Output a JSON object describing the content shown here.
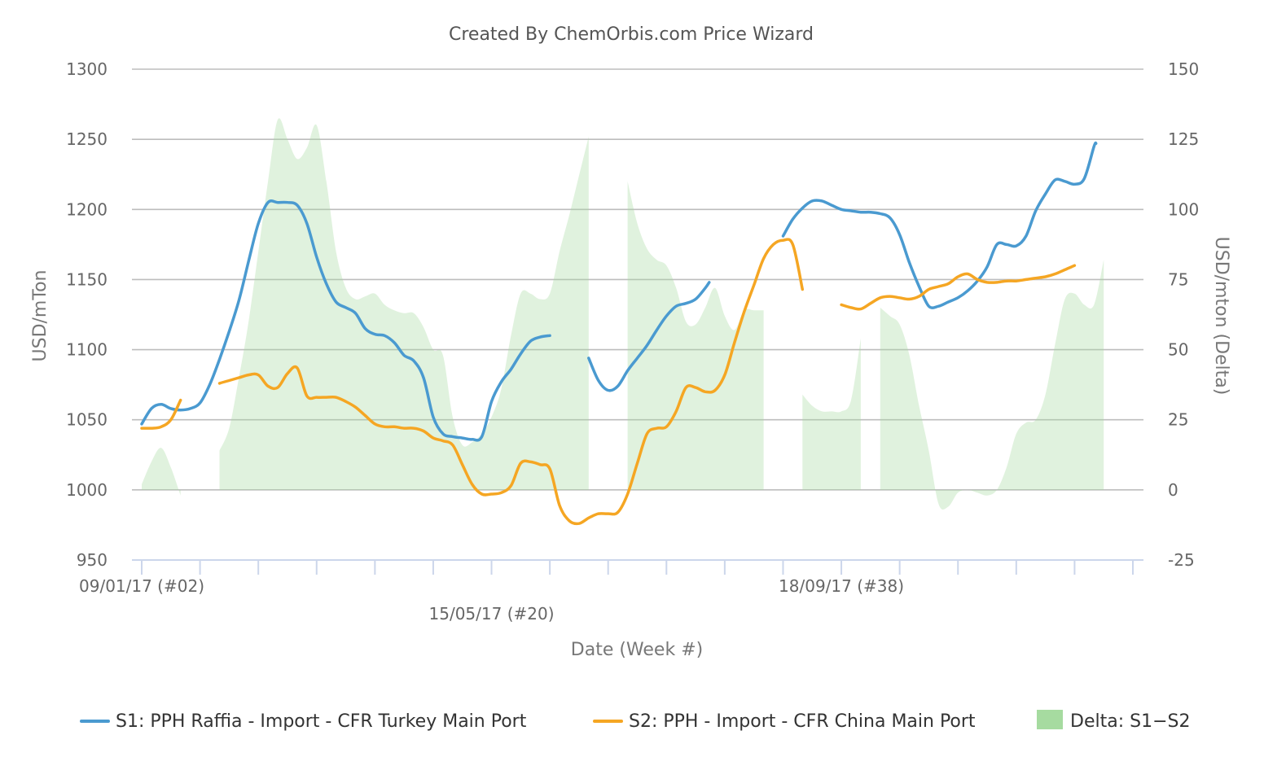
{
  "chart_data": {
    "type": "line",
    "title": "Created By ChemOrbis.com Price Wizard",
    "xlabel": "Date (Week #)",
    "ylabel": "USD/mTon",
    "y2label": "USD/mton (Delta)",
    "ylim": [
      950,
      1300
    ],
    "y2lim": [
      -25,
      150
    ],
    "yticks": [
      "950",
      "1000",
      "1050",
      "1100",
      "1150",
      "1200",
      "1250",
      "1300"
    ],
    "y2ticks": [
      "-25",
      "0",
      "25",
      "50",
      "75",
      "100",
      "125",
      "150"
    ],
    "xtick_labels": [
      {
        "week": 2,
        "label": "09/01/17 (#02)",
        "row": 1
      },
      {
        "week": 20,
        "label": "15/05/17 (#20)",
        "row": 2
      },
      {
        "week": 38,
        "label": "18/09/17 (#38)",
        "row": 1
      }
    ],
    "xtick_weeks": [
      2,
      5,
      8,
      11,
      14,
      17,
      20,
      23,
      26,
      29,
      32,
      35,
      38,
      41,
      44,
      47,
      50,
      53
    ],
    "x_domain": [
      2,
      53
    ],
    "grid": true,
    "legend_position": "bottom",
    "series": [
      {
        "name": "S1: PPH Raffia - Import - CFR Turkey Main Port",
        "axis": "left",
        "color": "#4a9ad0",
        "points": [
          [
            2,
            1047
          ],
          [
            2.5,
            1058
          ],
          [
            3,
            1061
          ],
          [
            3.5,
            1058
          ],
          [
            4,
            1057
          ],
          [
            4.5,
            1058
          ],
          [
            5,
            1062
          ],
          [
            5.5,
            1075
          ],
          [
            6,
            1093
          ],
          [
            6.5,
            1113
          ],
          [
            7,
            1135
          ],
          [
            7.5,
            1163
          ],
          [
            8,
            1190
          ],
          [
            8.5,
            1205
          ],
          [
            9,
            1205
          ],
          [
            9.5,
            1205
          ],
          [
            10,
            1203
          ],
          [
            10.5,
            1190
          ],
          [
            11,
            1166
          ],
          [
            11.5,
            1147
          ],
          [
            12,
            1134
          ],
          [
            12.5,
            1130
          ],
          [
            13,
            1126
          ],
          [
            13.5,
            1115
          ],
          [
            14,
            1111
          ],
          [
            14.5,
            1110
          ],
          [
            15,
            1105
          ],
          [
            15.5,
            1096
          ],
          [
            16,
            1092
          ],
          [
            16.5,
            1080
          ],
          [
            17,
            1052
          ],
          [
            17.5,
            1040
          ],
          [
            18,
            1038
          ],
          [
            18.5,
            1037
          ],
          [
            19,
            1036
          ],
          [
            19.5,
            1038
          ],
          [
            20,
            1063
          ],
          [
            20.5,
            1077
          ],
          [
            21,
            1086
          ],
          [
            21.5,
            1097
          ],
          [
            22,
            1106
          ],
          [
            22.5,
            1109
          ],
          [
            23,
            1110
          ],
          null,
          [
            25,
            1094
          ],
          [
            25.5,
            1078
          ],
          [
            26,
            1071
          ],
          [
            26.5,
            1074
          ],
          [
            27,
            1085
          ],
          [
            27.5,
            1094
          ],
          [
            28,
            1103
          ],
          [
            28.5,
            1114
          ],
          [
            29,
            1124
          ],
          [
            29.5,
            1131
          ],
          [
            30,
            1133
          ],
          [
            30.5,
            1136
          ],
          [
            31,
            1144
          ],
          [
            31.2,
            1148
          ],
          null,
          [
            35,
            1181
          ],
          [
            35.5,
            1193
          ],
          [
            36,
            1201
          ],
          [
            36.5,
            1206
          ],
          [
            37,
            1206
          ],
          [
            37.5,
            1203
          ],
          [
            38,
            1200
          ],
          [
            38.5,
            1199
          ],
          [
            39,
            1198
          ],
          [
            39.5,
            1198
          ],
          [
            40,
            1197
          ],
          [
            40.5,
            1194
          ],
          [
            41,
            1182
          ],
          [
            41.5,
            1162
          ],
          [
            42,
            1145
          ],
          [
            42.5,
            1131
          ],
          [
            43,
            1131
          ],
          [
            43.5,
            1134
          ],
          [
            44,
            1137
          ],
          [
            44.5,
            1142
          ],
          [
            45,
            1149
          ],
          [
            45.5,
            1159
          ],
          [
            46,
            1175
          ],
          [
            46.5,
            1175
          ],
          [
            47,
            1174
          ],
          [
            47.5,
            1181
          ],
          [
            48,
            1199
          ],
          [
            48.5,
            1211
          ],
          [
            49,
            1221
          ],
          [
            49.5,
            1220
          ],
          [
            50,
            1218
          ],
          [
            50.5,
            1222
          ],
          [
            51,
            1245
          ],
          [
            51.1,
            1247
          ]
        ]
      },
      {
        "name": "S2: PPH - Import - CFR China Main Port",
        "axis": "left",
        "color": "#f5a623",
        "points": [
          [
            2,
            1044
          ],
          [
            2.5,
            1044
          ],
          [
            3,
            1045
          ],
          [
            3.5,
            1050
          ],
          [
            4,
            1064
          ],
          null,
          [
            6,
            1076
          ],
          [
            6.5,
            1078
          ],
          [
            7,
            1080
          ],
          [
            7.5,
            1082
          ],
          [
            8,
            1082
          ],
          [
            8.5,
            1074
          ],
          [
            9,
            1073
          ],
          [
            9.5,
            1083
          ],
          [
            10,
            1087
          ],
          [
            10.5,
            1067
          ],
          [
            11,
            1066
          ],
          [
            11.5,
            1066
          ],
          [
            12,
            1066
          ],
          [
            12.5,
            1063
          ],
          [
            13,
            1059
          ],
          [
            13.5,
            1053
          ],
          [
            14,
            1047
          ],
          [
            14.5,
            1045
          ],
          [
            15,
            1045
          ],
          [
            15.5,
            1044
          ],
          [
            16,
            1044
          ],
          [
            16.5,
            1042
          ],
          [
            17,
            1037
          ],
          [
            17.5,
            1035
          ],
          [
            18,
            1032
          ],
          [
            18.5,
            1018
          ],
          [
            19,
            1004
          ],
          [
            19.5,
            997
          ],
          [
            20,
            997
          ],
          [
            20.5,
            998
          ],
          [
            21,
            1003
          ],
          [
            21.5,
            1019
          ],
          [
            22,
            1020
          ],
          [
            22.5,
            1018
          ],
          [
            23,
            1015
          ],
          [
            23.5,
            989
          ],
          [
            24,
            978
          ],
          [
            24.5,
            976
          ],
          [
            25,
            980
          ],
          [
            25.5,
            983
          ],
          [
            26,
            983
          ],
          [
            26.5,
            984
          ],
          [
            27,
            997
          ],
          [
            27.5,
            1019
          ],
          [
            28,
            1040
          ],
          [
            28.5,
            1044
          ],
          [
            29,
            1045
          ],
          [
            29.5,
            1056
          ],
          [
            30,
            1073
          ],
          [
            30.5,
            1073
          ],
          [
            31,
            1070
          ],
          [
            31.5,
            1071
          ],
          [
            32,
            1082
          ],
          [
            32.5,
            1105
          ],
          [
            33,
            1127
          ],
          [
            33.5,
            1146
          ],
          [
            34,
            1165
          ],
          [
            34.5,
            1175
          ],
          [
            35,
            1178
          ],
          [
            35.5,
            1175
          ],
          [
            36,
            1143
          ],
          null,
          [
            38,
            1132
          ],
          [
            38.5,
            1130
          ],
          [
            39,
            1129
          ],
          [
            39.5,
            1133
          ],
          [
            40,
            1137
          ],
          [
            40.5,
            1138
          ],
          [
            41,
            1137
          ],
          [
            41.5,
            1136
          ],
          [
            42,
            1138
          ],
          [
            42.5,
            1143
          ],
          [
            43,
            1145
          ],
          [
            43.5,
            1147
          ],
          [
            44,
            1152
          ],
          [
            44.5,
            1154
          ],
          [
            45,
            1150
          ],
          [
            45.5,
            1148
          ],
          [
            46,
            1148
          ],
          [
            46.5,
            1149
          ],
          [
            47,
            1149
          ],
          [
            47.5,
            1150
          ],
          [
            48,
            1151
          ],
          [
            48.5,
            1152
          ],
          [
            49,
            1154
          ],
          [
            49.5,
            1157
          ],
          [
            50,
            1160
          ]
        ]
      },
      {
        "name": "Delta: S1−S2",
        "axis": "right",
        "type": "area",
        "color": "#a6dba0",
        "fill_opacity": 0.35,
        "points": [
          [
            2,
            2
          ],
          [
            2.5,
            10
          ],
          [
            3,
            15
          ],
          [
            3.5,
            8
          ],
          [
            4,
            -2
          ],
          null,
          [
            6,
            14
          ],
          [
            6.5,
            22
          ],
          [
            7,
            40
          ],
          [
            7.5,
            60
          ],
          [
            8,
            85
          ],
          [
            8.5,
            110
          ],
          [
            9,
            132
          ],
          [
            9.5,
            125
          ],
          [
            10,
            118
          ],
          [
            10.5,
            122
          ],
          [
            11,
            130
          ],
          [
            11.5,
            110
          ],
          [
            12,
            85
          ],
          [
            12.5,
            72
          ],
          [
            13,
            68
          ],
          [
            13.5,
            69
          ],
          [
            14,
            70
          ],
          [
            14.5,
            66
          ],
          [
            15,
            64
          ],
          [
            15.5,
            63
          ],
          [
            16,
            63
          ],
          [
            16.5,
            58
          ],
          [
            17,
            50
          ],
          [
            17.5,
            48
          ],
          [
            18,
            26
          ],
          [
            18.5,
            16
          ],
          [
            19,
            17
          ],
          [
            19.5,
            20
          ],
          [
            20,
            26
          ],
          [
            20.5,
            36
          ],
          [
            21,
            55
          ],
          [
            21.5,
            70
          ],
          [
            22,
            70
          ],
          [
            22.5,
            68
          ],
          [
            23,
            70
          ],
          [
            23.5,
            85
          ],
          [
            24,
            98
          ],
          [
            24.5,
            112
          ],
          [
            25,
            126
          ],
          null,
          [
            27,
            110
          ],
          [
            27.5,
            95
          ],
          [
            28,
            86
          ],
          [
            28.5,
            82
          ],
          [
            29,
            80
          ],
          [
            29.5,
            72
          ],
          [
            30,
            60
          ],
          [
            30.5,
            59
          ],
          [
            31,
            65
          ],
          [
            31.5,
            72
          ],
          [
            32,
            62
          ],
          [
            32.5,
            57
          ],
          [
            33,
            64
          ],
          [
            33.5,
            64
          ],
          [
            34,
            64
          ],
          null,
          [
            36,
            34
          ],
          [
            36.5,
            30
          ],
          [
            37,
            28
          ],
          [
            37.5,
            28
          ],
          [
            38,
            28
          ],
          [
            38.5,
            32
          ],
          [
            39,
            54
          ],
          null,
          [
            40,
            65
          ],
          [
            40.5,
            62
          ],
          [
            41,
            59
          ],
          [
            41.5,
            48
          ],
          [
            42,
            30
          ],
          [
            42.5,
            14
          ],
          [
            43,
            -5
          ],
          [
            43.5,
            -6
          ],
          [
            44,
            -1
          ],
          [
            44.5,
            0
          ],
          [
            45,
            -1
          ],
          [
            45.5,
            -2
          ],
          [
            46,
            0
          ],
          [
            46.5,
            8
          ],
          [
            47,
            20
          ],
          [
            47.5,
            24
          ],
          [
            48,
            25
          ],
          [
            48.5,
            34
          ],
          [
            49,
            52
          ],
          [
            49.5,
            68
          ],
          [
            50,
            70
          ],
          [
            50.5,
            66
          ],
          [
            51,
            66
          ],
          [
            51.5,
            82
          ]
        ]
      }
    ]
  }
}
